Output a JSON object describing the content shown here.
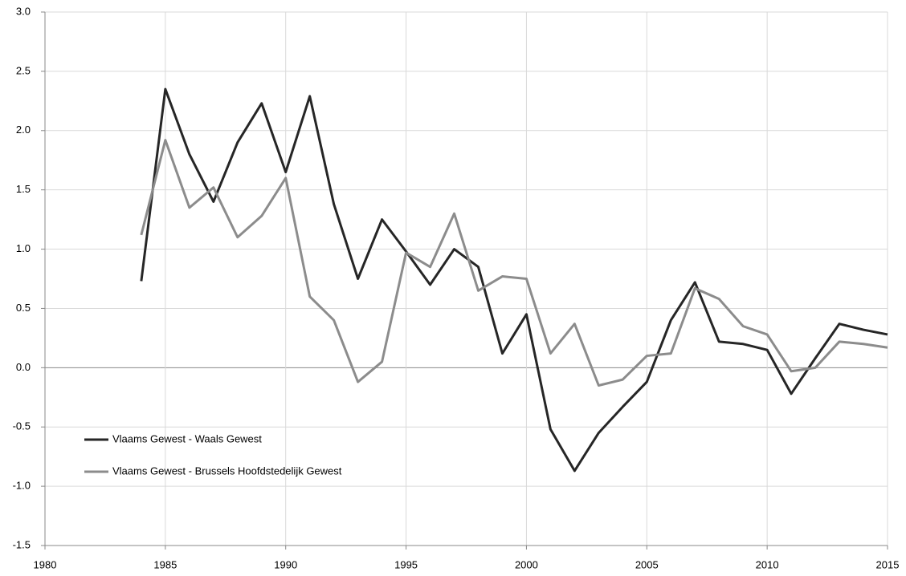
{
  "chart_data": {
    "type": "line",
    "x": [
      1984,
      1985,
      1986,
      1987,
      1988,
      1989,
      1990,
      1991,
      1992,
      1993,
      1994,
      1995,
      1996,
      1997,
      1998,
      1999,
      2000,
      2001,
      2002,
      2003,
      2004,
      2005,
      2006,
      2007,
      2008,
      2009,
      2010,
      2011,
      2012,
      2013,
      2014,
      2015
    ],
    "series": [
      {
        "name": "Vlaams Gewest - Waals Gewest",
        "color": "#262626",
        "values": [
          0.73,
          2.35,
          1.8,
          1.4,
          1.9,
          2.23,
          1.65,
          2.29,
          1.38,
          0.75,
          1.25,
          0.98,
          0.7,
          1.0,
          0.85,
          0.12,
          0.45,
          -0.52,
          -0.87,
          -0.55,
          -0.33,
          -0.12,
          0.4,
          0.72,
          0.22,
          0.2,
          0.15,
          -0.22,
          0.08,
          0.37,
          0.32,
          0.28
        ]
      },
      {
        "name": "Vlaams Gewest - Brussels Hoofdstedelijk Gewest",
        "color": "#8c8c8c",
        "values": [
          1.12,
          1.92,
          1.35,
          1.52,
          1.1,
          1.28,
          1.6,
          0.6,
          0.4,
          -0.12,
          0.05,
          0.97,
          0.85,
          1.3,
          0.65,
          0.77,
          0.75,
          0.12,
          0.37,
          -0.15,
          -0.1,
          0.1,
          0.12,
          0.67,
          0.58,
          0.35,
          0.28,
          -0.03,
          0.0,
          0.22,
          0.2,
          0.17
        ]
      }
    ],
    "xlim": [
      1980,
      2015
    ],
    "xticks": [
      1980,
      1985,
      1990,
      1995,
      2000,
      2005,
      2010,
      2015
    ],
    "ylim": [
      -1.5,
      3.0
    ],
    "yticks": [
      {
        "value": -1.5,
        "label": "-1.5"
      },
      {
        "value": -1,
        "label": "-1.0"
      },
      -0.5,
      {
        "value": 0,
        "label": "0.0"
      },
      0.5,
      {
        "value": 1,
        "label": "1.0"
      },
      1.5,
      {
        "value": 2,
        "label": "2.0"
      },
      2.5,
      {
        "value": 3,
        "label": "3.0"
      }
    ],
    "grid": true,
    "legend": "lower left"
  }
}
